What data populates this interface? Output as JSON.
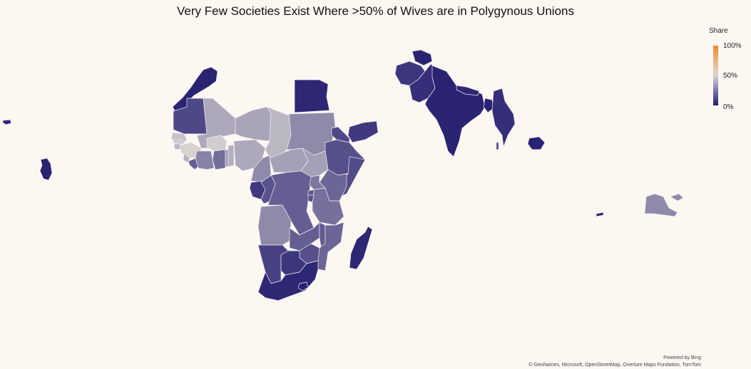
{
  "title": "Very Few Societies Exist Where >50% of Wives are in Polygynous Unions",
  "legend": {
    "title": "Share",
    "ticks": {
      "max": "100%",
      "mid": "50%",
      "min": "0%"
    },
    "colors": {
      "high": "#f08a2c",
      "mid": "#d8d4d2",
      "low": "#231c6e"
    }
  },
  "attribution": {
    "powered_by": "Powered by Bing",
    "sources": "© GeoNames, Microsoft, OpenStreetMap, Overture Maps Fundation, TomTom"
  },
  "map_data": {
    "type": "choropleth",
    "measure": "Share",
    "scale": [
      0,
      100
    ],
    "regions": [
      {
        "id": "morocco",
        "share": 2
      },
      {
        "id": "mauritania",
        "share": 12
      },
      {
        "id": "mali",
        "share": 38
      },
      {
        "id": "niger",
        "share": 37
      },
      {
        "id": "chad",
        "share": 42
      },
      {
        "id": "sudan",
        "share": 30
      },
      {
        "id": "egypt",
        "share": 3
      },
      {
        "id": "senegal",
        "share": 45
      },
      {
        "id": "gambia",
        "share": 44
      },
      {
        "id": "guinea-bissau",
        "share": 42
      },
      {
        "id": "guinea",
        "share": 52
      },
      {
        "id": "sierra-leone",
        "share": 40
      },
      {
        "id": "liberia",
        "share": 18
      },
      {
        "id": "cote-divoire",
        "share": 28
      },
      {
        "id": "burkina-faso",
        "share": 48
      },
      {
        "id": "ghana",
        "share": 22
      },
      {
        "id": "togo",
        "share": 35
      },
      {
        "id": "benin",
        "share": 40
      },
      {
        "id": "nigeria",
        "share": 38
      },
      {
        "id": "cameroon",
        "share": 30
      },
      {
        "id": "car",
        "share": 36
      },
      {
        "id": "gabon",
        "share": 8
      },
      {
        "id": "congo",
        "share": 15
      },
      {
        "id": "drc",
        "share": 18
      },
      {
        "id": "south-sudan",
        "share": 36
      },
      {
        "id": "ethiopia",
        "share": 14
      },
      {
        "id": "eritrea",
        "share": 12
      },
      {
        "id": "somalia",
        "share": 13
      },
      {
        "id": "kenya",
        "share": 20
      },
      {
        "id": "uganda",
        "share": 25
      },
      {
        "id": "rwanda",
        "share": 16
      },
      {
        "id": "burundi",
        "share": 14
      },
      {
        "id": "tanzania",
        "share": 23
      },
      {
        "id": "angola",
        "share": 30
      },
      {
        "id": "zambia",
        "share": 18
      },
      {
        "id": "malawi",
        "share": 17
      },
      {
        "id": "mozambique",
        "share": 20
      },
      {
        "id": "zimbabwe",
        "share": 14
      },
      {
        "id": "namibia",
        "share": 10
      },
      {
        "id": "botswana",
        "share": 7
      },
      {
        "id": "south-africa",
        "share": 3
      },
      {
        "id": "lesotho",
        "share": 2
      },
      {
        "id": "madagascar",
        "share": 3
      },
      {
        "id": "yemen",
        "share": 8
      },
      {
        "id": "pakistan",
        "share": 5
      },
      {
        "id": "afghanistan",
        "share": 7
      },
      {
        "id": "tajikistan",
        "share": 2
      },
      {
        "id": "nepal",
        "share": 3
      },
      {
        "id": "india",
        "share": 2
      },
      {
        "id": "bangladesh",
        "share": 2
      },
      {
        "id": "myanmar",
        "share": 5
      },
      {
        "id": "cambodia",
        "share": 2
      },
      {
        "id": "papua-new-guinea",
        "share": 30
      },
      {
        "id": "timor-leste",
        "share": 3
      },
      {
        "id": "haiti",
        "share": 3
      },
      {
        "id": "guyana",
        "share": 2
      },
      {
        "id": "maldives",
        "share": 5
      }
    ]
  }
}
